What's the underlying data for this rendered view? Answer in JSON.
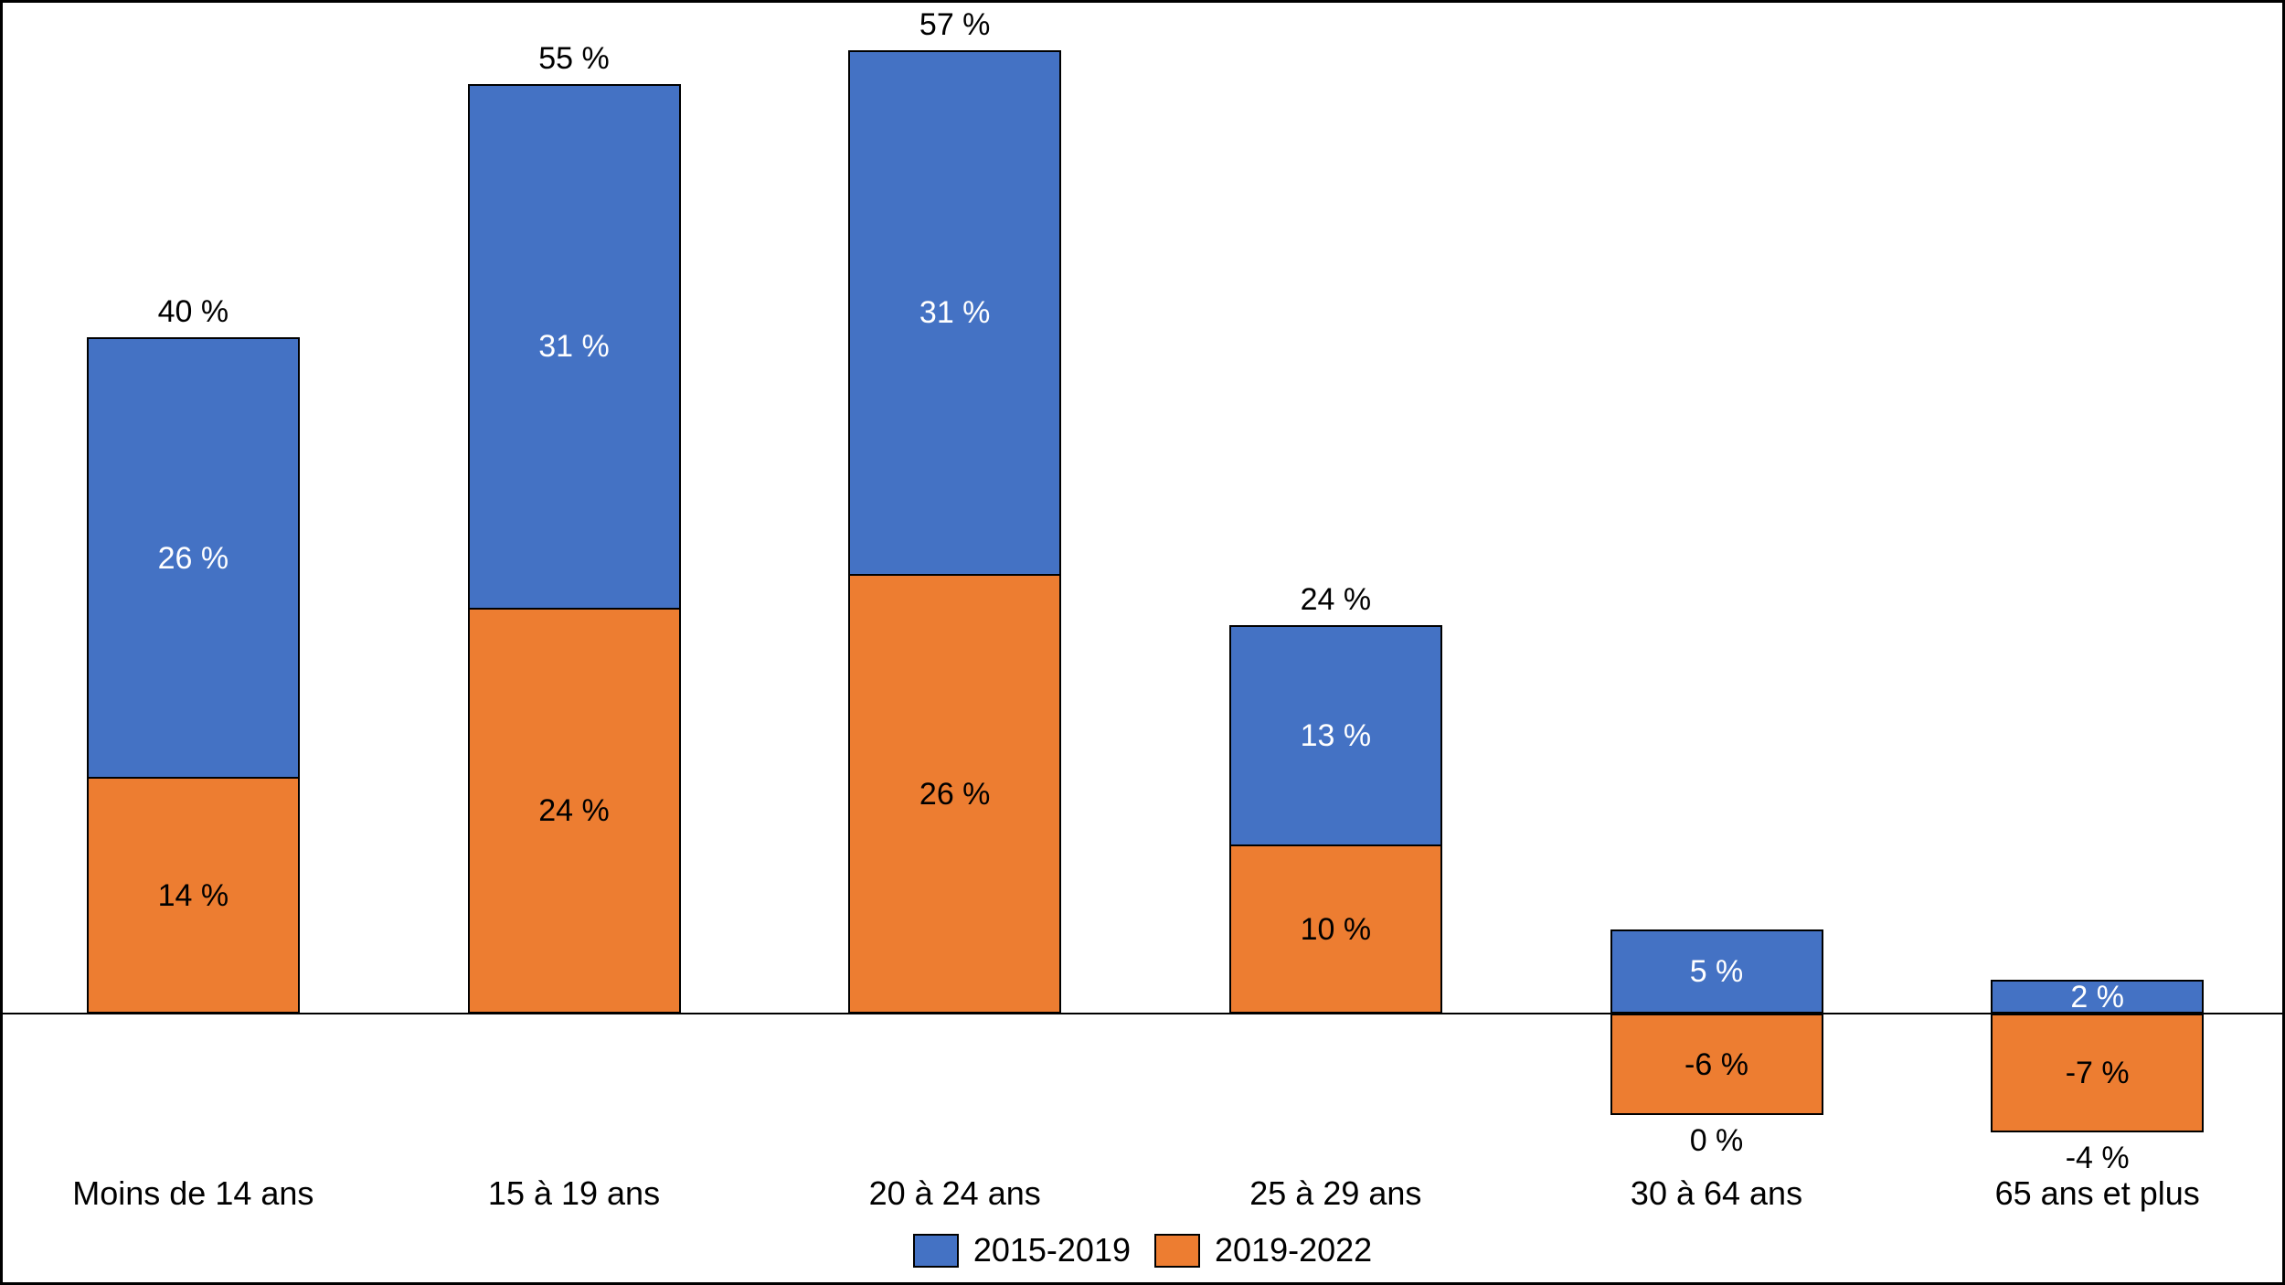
{
  "chart_data": {
    "type": "bar",
    "stacked": true,
    "title": "",
    "xlabel": "",
    "ylabel": "",
    "grid": false,
    "legend_position": "bottom",
    "ylim": [
      -10,
      60
    ],
    "axis_color": "#000000",
    "bar_border_color": "#000000",
    "background_color": "#FFFFFF",
    "categories": [
      "Moins de 14 ans",
      "15 à 19 ans",
      "20 à 24 ans",
      "25 à 29 ans",
      "30 à 64 ans",
      "65 ans et plus"
    ],
    "series": [
      {
        "name": "2015-2019",
        "color": "#4472C4",
        "label_color": "#FFFFFF",
        "values": [
          26,
          31,
          31,
          13,
          5,
          2
        ],
        "labels": [
          "26 %",
          "31 %",
          "31 %",
          "13 %",
          "5 %",
          "2 %"
        ]
      },
      {
        "name": "2019-2022",
        "color": "#ED7D31",
        "label_color": "#000000",
        "values": [
          14,
          24,
          26,
          10,
          -6,
          -7
        ],
        "labels": [
          "14 %",
          "24 %",
          "26 %",
          "10 %",
          "-6 %",
          "-7 %"
        ]
      }
    ],
    "totals": {
      "values": [
        40,
        55,
        57,
        24,
        0,
        -4
      ],
      "labels": [
        "40 %",
        "55 %",
        "57 %",
        "24 %",
        "0 %",
        "-4 %"
      ]
    }
  }
}
